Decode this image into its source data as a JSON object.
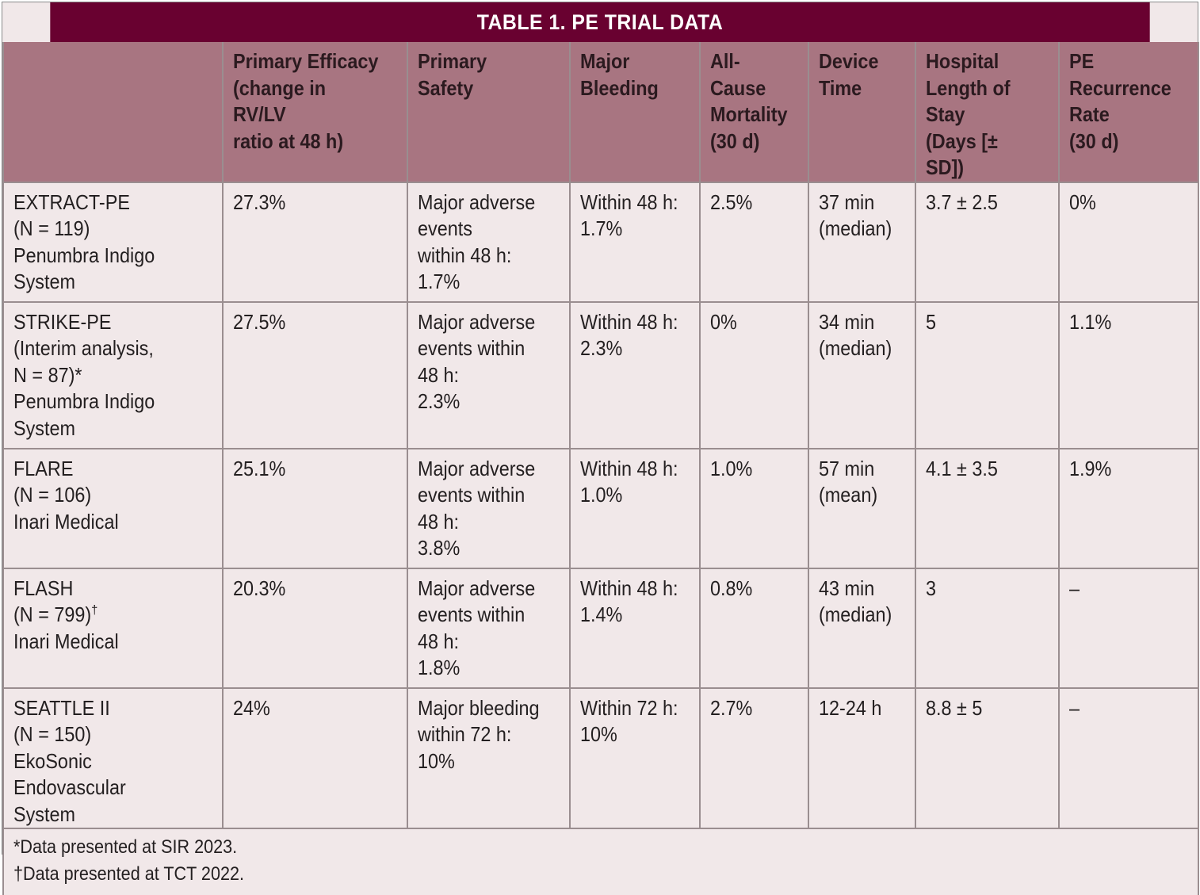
{
  "table": {
    "title": "TABLE 1.  PE TRIAL DATA",
    "headers": [
      "",
      "Primary Efficacy\n(change in RV/LV\nratio at 48 h)",
      "Primary Safety",
      "Major\nBleeding",
      "All-Cause\nMortality\n(30 d)",
      "Device\nTime",
      "Hospital\nLength of\nStay\n(Days [± SD])",
      "PE\nRecurrence\nRate\n(30 d)"
    ],
    "rows": [
      {
        "trial": "EXTRACT-PE\n(N = 119)\nPenumbra Indigo\nSystem",
        "efficacy": "27.3%",
        "safety": "Major adverse\nevents\nwithin 48 h:\n1.7%",
        "bleeding": "Within 48 h:\n1.7%",
        "mortality": "2.5%",
        "device_time": "37 min\n(median)",
        "los": "3.7 ± 2.5",
        "recurrence": "0%"
      },
      {
        "trial": "STRIKE-PE\n(Interim analysis,\nN = 87)*\nPenumbra Indigo\nSystem",
        "efficacy": "27.5%",
        "safety": "Major adverse\nevents within\n48 h:\n2.3%",
        "bleeding": "Within 48 h:\n2.3%",
        "mortality": "0%",
        "device_time": "34 min\n(median)",
        "los": "5",
        "recurrence": "1.1%"
      },
      {
        "trial": "FLARE\n(N = 106)\nInari Medical",
        "efficacy": "25.1%",
        "safety": "Major adverse\nevents within\n48 h:\n3.8%",
        "bleeding": "Within 48 h:\n1.0%",
        "mortality": "1.0%",
        "device_time": "57 min\n(mean)",
        "los": "4.1 ± 3.5",
        "recurrence": "1.9%"
      },
      {
        "trial_line1": "FLASH",
        "trial_line2": "(N = 799)",
        "trial_mark": "†",
        "trial_line3": "Inari Medical",
        "efficacy": "20.3%",
        "safety": "Major adverse\nevents within\n48 h:\n1.8%",
        "bleeding": "Within 48 h:\n1.4%",
        "mortality": "0.8%",
        "device_time": "43 min\n(median)",
        "los": "3",
        "recurrence": "–"
      },
      {
        "trial": "SEATTLE II\n(N = 150)\nEkoSonic Endovascular\nSystem",
        "efficacy": "24%",
        "safety": "Major bleeding\nwithin 72 h:\n10%",
        "bleeding": "Within 72 h:\n10%",
        "mortality": "2.7%",
        "device_time": "12-24 h",
        "los": "8.8 ± 5",
        "recurrence": "–"
      }
    ],
    "footnotes": [
      "*Data presented at SIR 2023.",
      "†Data presented at TCT 2022."
    ]
  }
}
